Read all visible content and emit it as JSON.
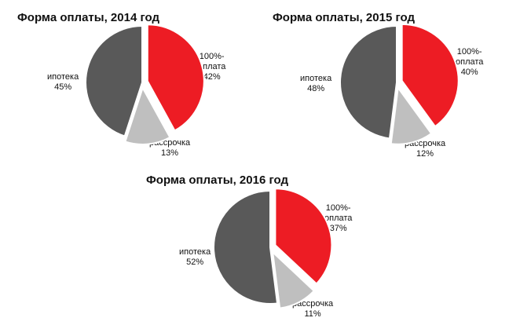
{
  "colors": {
    "full_payment": "#ED1C24",
    "installment": "#BFBFBF",
    "mortgage": "#595959",
    "separator": "#ffffff"
  },
  "chart_data": [
    {
      "type": "pie",
      "title": "Форма оплаты, 2014 год",
      "slices": [
        {
          "label_lines": [
            "100%-",
            "оплата"
          ],
          "pct_label": "42%",
          "value": 42,
          "color": "#ED1C24",
          "exploded": true
        },
        {
          "label_lines": [
            "рассрочка"
          ],
          "pct_label": "13%",
          "value": 13,
          "color": "#BFBFBF",
          "exploded": true
        },
        {
          "label_lines": [
            "ипотека"
          ],
          "pct_label": "45%",
          "value": 45,
          "color": "#595959",
          "exploded": false
        }
      ]
    },
    {
      "type": "pie",
      "title": "Форма оплаты, 2015 год",
      "slices": [
        {
          "label_lines": [
            "100%-",
            "оплата"
          ],
          "pct_label": "40%",
          "value": 40,
          "color": "#ED1C24",
          "exploded": true
        },
        {
          "label_lines": [
            "рассрочка"
          ],
          "pct_label": "12%",
          "value": 12,
          "color": "#BFBFBF",
          "exploded": true
        },
        {
          "label_lines": [
            "ипотека"
          ],
          "pct_label": "48%",
          "value": 48,
          "color": "#595959",
          "exploded": false
        }
      ]
    },
    {
      "type": "pie",
      "title": "Форма оплаты, 2016 год",
      "slices": [
        {
          "label_lines": [
            "100%-",
            "оплата"
          ],
          "pct_label": "37%",
          "value": 37,
          "color": "#ED1C24",
          "exploded": true
        },
        {
          "label_lines": [
            "рассрочка"
          ],
          "pct_label": "11%",
          "value": 11,
          "color": "#BFBFBF",
          "exploded": true
        },
        {
          "label_lines": [
            "ипотека"
          ],
          "pct_label": "52%",
          "value": 52,
          "color": "#595959",
          "exploded": false
        }
      ]
    }
  ]
}
